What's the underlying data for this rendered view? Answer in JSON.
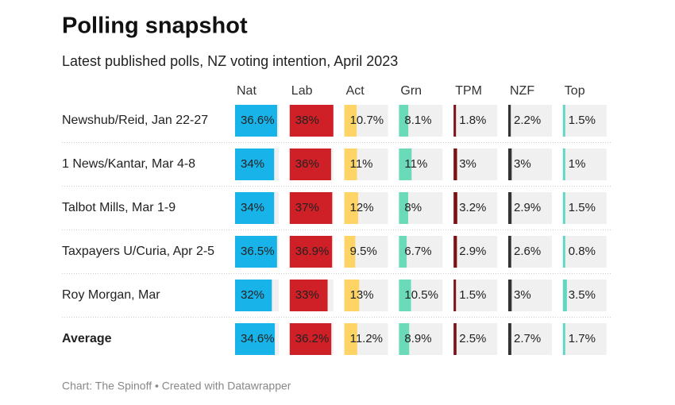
{
  "chart_data": {
    "type": "bar-table",
    "title": "Polling snapshot",
    "subtitle": "Latest published polls, NZ voting intention, April 2023",
    "source": "Chart: The Spinoff • Created with Datawrapper",
    "categories": [
      "Newshub/Reid, Jan 22-27",
      "1 News/Kantar, Mar 4-8",
      "Talbot Mills, Mar 1-9",
      "Taxpayers U/Curia, Apr 2-5",
      "Roy Morgan, Mar",
      "Average"
    ],
    "xlim": [
      0,
      38
    ],
    "series": [
      {
        "name": "Nat",
        "color": "#18b4e9",
        "values": [
          36.6,
          34,
          34,
          36.5,
          32,
          34.6
        ],
        "value_labels": [
          "36.6%",
          "34%",
          "34%",
          "36.5%",
          "32%",
          "34.6%"
        ]
      },
      {
        "name": "Lab",
        "color": "#cf2027",
        "values": [
          38,
          36,
          37,
          36.9,
          33,
          36.2
        ],
        "value_labels": [
          "38%",
          "36%",
          "37%",
          "36.9%",
          "33%",
          "36.2%"
        ]
      },
      {
        "name": "Act",
        "color": "#fdd465",
        "values": [
          10.7,
          11,
          12,
          9.5,
          13,
          11.2
        ],
        "value_labels": [
          "10.7%",
          "11%",
          "12%",
          "9.5%",
          "13%",
          "11.2%"
        ]
      },
      {
        "name": "Grn",
        "color": "#6bdab8",
        "values": [
          8.1,
          11,
          8,
          6.7,
          10.5,
          8.9
        ],
        "value_labels": [
          "8.1%",
          "11%",
          "8%",
          "6.7%",
          "10.5%",
          "8.9%"
        ]
      },
      {
        "name": "TPM",
        "color": "#7b1113",
        "values": [
          1.8,
          3,
          3.2,
          2.9,
          1.5,
          2.5
        ],
        "value_labels": [
          "1.8%",
          "3%",
          "3.2%",
          "2.9%",
          "1.5%",
          "2.5%"
        ]
      },
      {
        "name": "NZF",
        "color": "#333333",
        "values": [
          2.2,
          3,
          2.9,
          2.6,
          3,
          2.7
        ],
        "value_labels": [
          "2.2%",
          "3%",
          "2.9%",
          "2.6%",
          "3%",
          "2.7%"
        ]
      },
      {
        "name": "Top",
        "color": "#63d6c4",
        "values": [
          1.5,
          1,
          1.5,
          0.8,
          3.5,
          1.7
        ],
        "value_labels": [
          "1.5%",
          "1%",
          "1.5%",
          "0.8%",
          "3.5%",
          "1.7%"
        ]
      }
    ]
  }
}
